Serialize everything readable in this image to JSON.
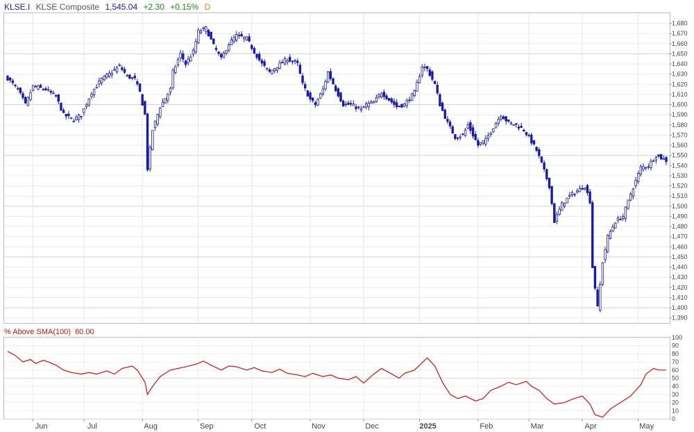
{
  "header": {
    "symbol": "KLSE.I",
    "name": "KLSE Composite",
    "last": "1,545.04",
    "change": "+2.30",
    "change_pct": "+0.15%",
    "period": "D",
    "colors": {
      "symbol": "#1a1aa6",
      "name": "#555555",
      "last": "#1a1aa6",
      "change": "#1c8a1c",
      "period": "#e08a00"
    }
  },
  "indicator": {
    "label": "% Above SMA(100)",
    "value": "60.00",
    "color": "#cc1111"
  },
  "chart_data": [
    {
      "type": "candlestick",
      "title": "KLSE Composite",
      "ylim": [
        1385,
        1690
      ],
      "y_ticks": [
        {
          "v": 1390,
          "label": "1,390"
        },
        {
          "v": 1400,
          "label": "1,400"
        },
        {
          "v": 1410,
          "label": "1,410"
        },
        {
          "v": 1420,
          "label": "1,420"
        },
        {
          "v": 1430,
          "label": "1,430"
        },
        {
          "v": 1440,
          "label": "1,440"
        },
        {
          "v": 1450,
          "label": "1,450"
        },
        {
          "v": 1460,
          "label": "1,460"
        },
        {
          "v": 1470,
          "label": "1,470"
        },
        {
          "v": 1480,
          "label": "1,480"
        },
        {
          "v": 1490,
          "label": "1,490"
        },
        {
          "v": 1500,
          "label": "1,500"
        },
        {
          "v": 1510,
          "label": "1,510"
        },
        {
          "v": 1520,
          "label": "1,520"
        },
        {
          "v": 1530,
          "label": "1,530"
        },
        {
          "v": 1540,
          "label": "1,540"
        },
        {
          "v": 1550,
          "label": "1,550"
        },
        {
          "v": 1560,
          "label": "1,560"
        },
        {
          "v": 1570,
          "label": "1,570"
        },
        {
          "v": 1580,
          "label": "1,580"
        },
        {
          "v": 1590,
          "label": "1,590"
        },
        {
          "v": 1600,
          "label": "1,600"
        },
        {
          "v": 1610,
          "label": "1,610"
        },
        {
          "v": 1620,
          "label": "1,620"
        },
        {
          "v": 1630,
          "label": "1,630"
        },
        {
          "v": 1640,
          "label": "1,640"
        },
        {
          "v": 1650,
          "label": "1,650"
        },
        {
          "v": 1660,
          "label": "1,660"
        },
        {
          "v": 1670,
          "label": "1,670"
        },
        {
          "v": 1680,
          "label": "1,680"
        }
      ],
      "major_ticks": [
        1400,
        1450,
        1500,
        1550,
        1600,
        1650
      ],
      "grid": true,
      "up_color": "#1a1aa6",
      "down_color": "#1a1aa6",
      "x_labels": [
        {
          "date": "2024-06-01",
          "label": "Jun"
        },
        {
          "date": "2024-07-01",
          "label": "Jul"
        },
        {
          "date": "2024-08-01",
          "label": "Aug"
        },
        {
          "date": "2024-09-01",
          "label": "Sep"
        },
        {
          "date": "2024-10-01",
          "label": "Oct"
        },
        {
          "date": "2024-11-01",
          "label": "Nov"
        },
        {
          "date": "2024-12-01",
          "label": "Dec"
        },
        {
          "date": "2025-01-01",
          "label": "2025",
          "bold": true
        },
        {
          "date": "2025-02-01",
          "label": "Feb"
        },
        {
          "date": "2025-03-01",
          "label": "Mar"
        },
        {
          "date": "2025-04-01",
          "label": "Apr"
        },
        {
          "date": "2025-05-01",
          "label": "May"
        }
      ],
      "date_range": [
        "2024-05-20",
        "2025-05-16"
      ],
      "close_anchors": [
        [
          "2024-05-20",
          1626
        ],
        [
          "2024-05-24",
          1615
        ],
        [
          "2024-05-29",
          1600
        ],
        [
          "2024-06-03",
          1618
        ],
        [
          "2024-06-10",
          1615
        ],
        [
          "2024-06-14",
          1608
        ],
        [
          "2024-06-19",
          1590
        ],
        [
          "2024-06-25",
          1585
        ],
        [
          "2024-06-28",
          1590
        ],
        [
          "2024-07-04",
          1612
        ],
        [
          "2024-07-10",
          1625
        ],
        [
          "2024-07-16",
          1632
        ],
        [
          "2024-07-19",
          1638
        ],
        [
          "2024-07-24",
          1628
        ],
        [
          "2024-07-29",
          1625
        ],
        [
          "2024-07-31",
          1612
        ],
        [
          "2024-08-02",
          1590
        ],
        [
          "2024-08-05",
          1537
        ],
        [
          "2024-08-07",
          1575
        ],
        [
          "2024-08-12",
          1598
        ],
        [
          "2024-08-16",
          1615
        ],
        [
          "2024-08-19",
          1632
        ],
        [
          "2024-08-22",
          1650
        ],
        [
          "2024-08-26",
          1640
        ],
        [
          "2024-08-29",
          1652
        ],
        [
          "2024-09-02",
          1672
        ],
        [
          "2024-09-05",
          1675
        ],
        [
          "2024-09-10",
          1658
        ],
        [
          "2024-09-13",
          1645
        ],
        [
          "2024-09-18",
          1660
        ],
        [
          "2024-09-23",
          1668
        ],
        [
          "2024-09-27",
          1665
        ],
        [
          "2024-10-02",
          1652
        ],
        [
          "2024-10-07",
          1640
        ],
        [
          "2024-10-10",
          1632
        ],
        [
          "2024-10-15",
          1638
        ],
        [
          "2024-10-21",
          1645
        ],
        [
          "2024-10-25",
          1640
        ],
        [
          "2024-10-29",
          1620
        ],
        [
          "2024-11-01",
          1605
        ],
        [
          "2024-11-05",
          1600
        ],
        [
          "2024-11-08",
          1615
        ],
        [
          "2024-11-12",
          1632
        ],
        [
          "2024-11-15",
          1615
        ],
        [
          "2024-11-20",
          1600
        ],
        [
          "2024-11-25",
          1600
        ],
        [
          "2024-11-29",
          1595
        ],
        [
          "2024-12-03",
          1600
        ],
        [
          "2024-12-06",
          1602
        ],
        [
          "2024-12-11",
          1612
        ],
        [
          "2024-12-16",
          1605
        ],
        [
          "2024-12-19",
          1598
        ],
        [
          "2024-12-24",
          1600
        ],
        [
          "2024-12-30",
          1612
        ],
        [
          "2025-01-02",
          1638
        ],
        [
          "2025-01-06",
          1635
        ],
        [
          "2025-01-09",
          1620
        ],
        [
          "2025-01-13",
          1600
        ],
        [
          "2025-01-16",
          1582
        ],
        [
          "2025-01-21",
          1568
        ],
        [
          "2025-01-24",
          1570
        ],
        [
          "2025-01-28",
          1580
        ],
        [
          "2025-02-03",
          1560
        ],
        [
          "2025-02-06",
          1565
        ],
        [
          "2025-02-11",
          1578
        ],
        [
          "2025-02-14",
          1590
        ],
        [
          "2025-02-19",
          1582
        ],
        [
          "2025-02-24",
          1580
        ],
        [
          "2025-02-27",
          1575
        ],
        [
          "2025-03-03",
          1568
        ],
        [
          "2025-03-06",
          1555
        ],
        [
          "2025-03-10",
          1542
        ],
        [
          "2025-03-13",
          1520
        ],
        [
          "2025-03-17",
          1485
        ],
        [
          "2025-03-20",
          1502
        ],
        [
          "2025-03-25",
          1510
        ],
        [
          "2025-03-28",
          1515
        ],
        [
          "2025-04-02",
          1520
        ],
        [
          "2025-04-04",
          1505
        ],
        [
          "2025-04-07",
          1440
        ],
        [
          "2025-04-09",
          1400
        ],
        [
          "2025-04-11",
          1445
        ],
        [
          "2025-04-15",
          1470
        ],
        [
          "2025-04-18",
          1485
        ],
        [
          "2025-04-23",
          1490
        ],
        [
          "2025-04-28",
          1512
        ],
        [
          "2025-05-02",
          1538
        ],
        [
          "2025-05-07",
          1540
        ],
        [
          "2025-05-12",
          1550
        ],
        [
          "2025-05-16",
          1545
        ]
      ]
    },
    {
      "type": "line",
      "title": "% Above SMA(100)",
      "ylim": [
        0,
        100
      ],
      "y_ticks": [
        0,
        10,
        20,
        30,
        40,
        50,
        60,
        70,
        80,
        90,
        100
      ],
      "major_ticks": [
        50,
        100
      ],
      "series": [
        {
          "name": "% Above SMA(100)",
          "color": "#cc1111",
          "points": [
            [
              "2024-05-20",
              83
            ],
            [
              "2024-05-23",
              78
            ],
            [
              "2024-05-28",
              70
            ],
            [
              "2024-05-31",
              73
            ],
            [
              "2024-06-04",
              68
            ],
            [
              "2024-06-07",
              72
            ],
            [
              "2024-06-11",
              70
            ],
            [
              "2024-06-14",
              66
            ],
            [
              "2024-06-19",
              60
            ],
            [
              "2024-06-24",
              57
            ],
            [
              "2024-06-28",
              55
            ],
            [
              "2024-07-03",
              57
            ],
            [
              "2024-07-08",
              55
            ],
            [
              "2024-07-12",
              59
            ],
            [
              "2024-07-17",
              55
            ],
            [
              "2024-07-22",
              62
            ],
            [
              "2024-07-26",
              65
            ],
            [
              "2024-07-30",
              60
            ],
            [
              "2024-08-02",
              45
            ],
            [
              "2024-08-05",
              30
            ],
            [
              "2024-08-07",
              40
            ],
            [
              "2024-08-12",
              52
            ],
            [
              "2024-08-16",
              60
            ],
            [
              "2024-08-21",
              62
            ],
            [
              "2024-08-26",
              64
            ],
            [
              "2024-08-30",
              67
            ],
            [
              "2024-09-04",
              71
            ],
            [
              "2024-09-09",
              66
            ],
            [
              "2024-09-13",
              60
            ],
            [
              "2024-09-18",
              65
            ],
            [
              "2024-09-23",
              64
            ],
            [
              "2024-09-27",
              60
            ],
            [
              "2024-10-02",
              63
            ],
            [
              "2024-10-07",
              59
            ],
            [
              "2024-10-11",
              57
            ],
            [
              "2024-10-16",
              61
            ],
            [
              "2024-10-21",
              56
            ],
            [
              "2024-10-25",
              54
            ],
            [
              "2024-10-30",
              52
            ],
            [
              "2024-11-04",
              56
            ],
            [
              "2024-11-08",
              52
            ],
            [
              "2024-11-13",
              54
            ],
            [
              "2024-11-18",
              50
            ],
            [
              "2024-11-22",
              48
            ],
            [
              "2024-11-27",
              52
            ],
            [
              "2024-12-02",
              44
            ],
            [
              "2024-12-06",
              55
            ],
            [
              "2024-12-11",
              62
            ],
            [
              "2024-12-16",
              57
            ],
            [
              "2024-12-20",
              50
            ],
            [
              "2024-12-24",
              56
            ],
            [
              "2024-12-30",
              60
            ],
            [
              "2025-01-03",
              72
            ],
            [
              "2025-01-06",
              75
            ],
            [
              "2025-01-09",
              65
            ],
            [
              "2025-01-14",
              45
            ],
            [
              "2025-01-17",
              30
            ],
            [
              "2025-01-22",
              25
            ],
            [
              "2025-01-27",
              28
            ],
            [
              "2025-01-31",
              22
            ],
            [
              "2025-02-05",
              25
            ],
            [
              "2025-02-10",
              35
            ],
            [
              "2025-02-14",
              40
            ],
            [
              "2025-02-19",
              45
            ],
            [
              "2025-02-24",
              42
            ],
            [
              "2025-02-28",
              46
            ],
            [
              "2025-03-04",
              40
            ],
            [
              "2025-03-07",
              35
            ],
            [
              "2025-03-12",
              25
            ],
            [
              "2025-03-17",
              18
            ],
            [
              "2025-03-21",
              20
            ],
            [
              "2025-03-26",
              24
            ],
            [
              "2025-04-01",
              28
            ],
            [
              "2025-04-04",
              18
            ],
            [
              "2025-04-08",
              5
            ],
            [
              "2025-04-11",
              2
            ],
            [
              "2025-04-16",
              12
            ],
            [
              "2025-04-22",
              20
            ],
            [
              "2025-04-28",
              28
            ],
            [
              "2025-05-02",
              42
            ],
            [
              "2025-05-06",
              55
            ],
            [
              "2025-05-09",
              62
            ],
            [
              "2025-05-13",
              60
            ],
            [
              "2025-05-16",
              60
            ]
          ]
        }
      ]
    }
  ]
}
